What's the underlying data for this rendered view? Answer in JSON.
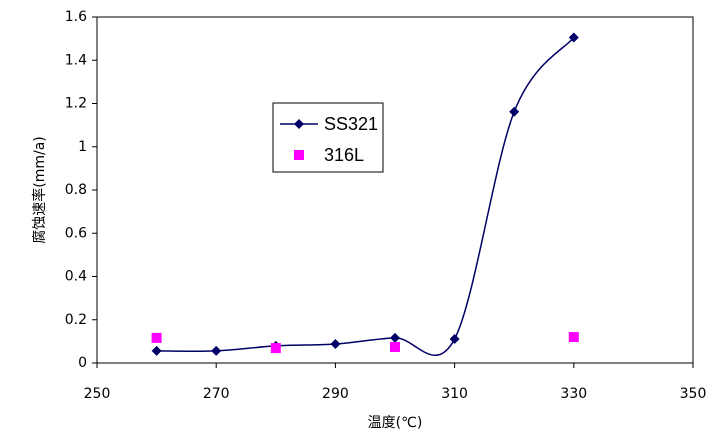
{
  "chart_data": {
    "type": "line",
    "x_label": "温度(℃)",
    "y_label": "腐蚀速率(mm/a)",
    "xlim": [
      250,
      350
    ],
    "xticks": [
      250,
      270,
      290,
      310,
      330,
      350
    ],
    "ylim": [
      0,
      1.6
    ],
    "yticks": [
      0,
      0.2,
      0.4,
      0.6,
      0.8,
      1,
      1.2,
      1.4,
      1.6
    ],
    "grid": false,
    "legend": "upper-left",
    "series": [
      {
        "name": "SS321",
        "type": "line",
        "marker": "diamond",
        "color": "#000066",
        "x": [
          260,
          270,
          280,
          290,
          300,
          310,
          320,
          330
        ],
        "values": [
          0.056,
          0.056,
          0.079,
          0.088,
          0.116,
          0.111,
          1.162,
          1.505
        ]
      },
      {
        "name": "316L",
        "type": "scatter",
        "marker": "square",
        "color": "#ff00ff",
        "x": [
          260,
          280,
          300,
          330
        ],
        "values": [
          0.116,
          0.069,
          0.074,
          0.12
        ]
      }
    ]
  }
}
